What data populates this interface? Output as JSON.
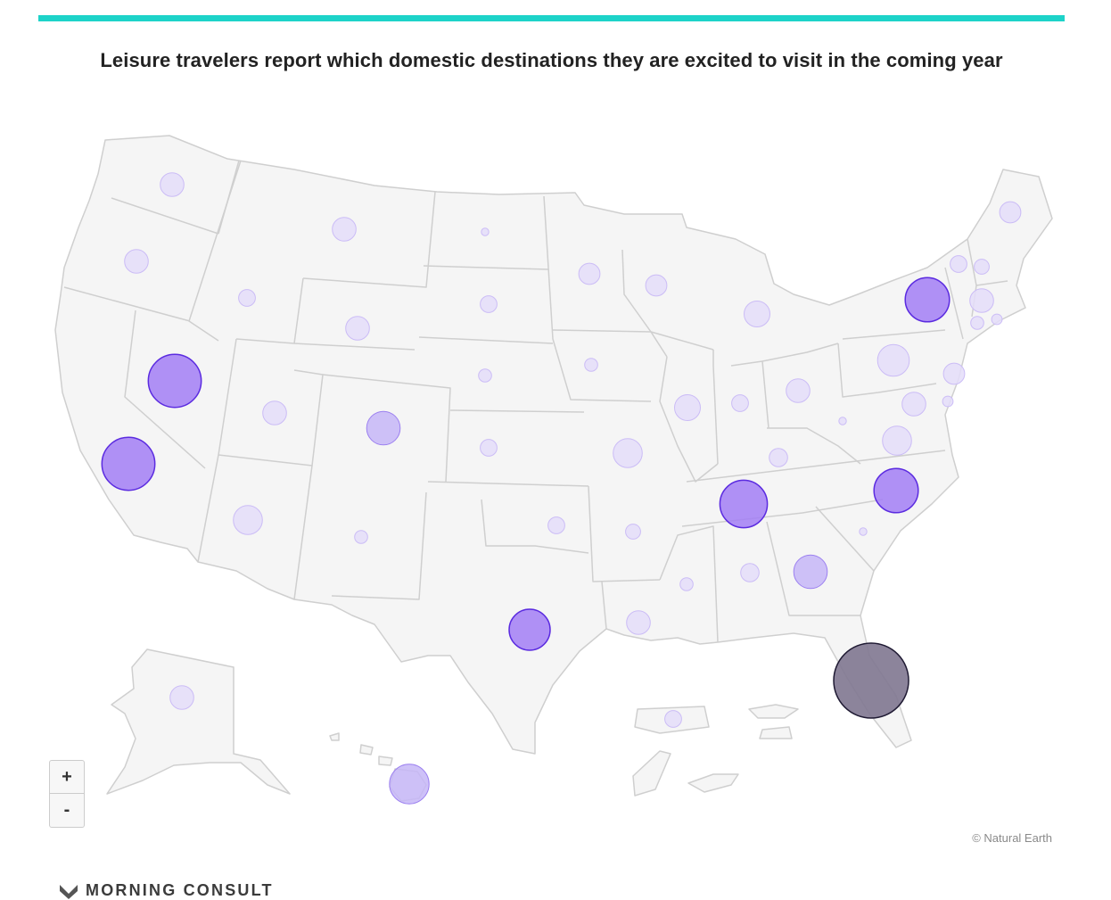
{
  "header": {
    "title": "Leisure travelers report which domestic destinations they are excited to visit in the coming year"
  },
  "map": {
    "region": "United States",
    "style": {
      "land": "#f5f5f5",
      "border": "#cfcfcf",
      "bubble_low": "#e4ddf9",
      "bubble_high": "#a27ef5",
      "bubble_max": "#7f7790"
    },
    "states": [
      {
        "name": "Washington",
        "value": 1
      },
      {
        "name": "Oregon",
        "value": 1
      },
      {
        "name": "California",
        "value": 5
      },
      {
        "name": "Nevada",
        "value": 5
      },
      {
        "name": "Idaho",
        "value": 0.5
      },
      {
        "name": "Montana",
        "value": 1
      },
      {
        "name": "Wyoming",
        "value": 1
      },
      {
        "name": "Utah",
        "value": 1
      },
      {
        "name": "Colorado",
        "value": 2
      },
      {
        "name": "Arizona",
        "value": 1.5
      },
      {
        "name": "New Mexico",
        "value": 0.3
      },
      {
        "name": "North Dakota",
        "value": 0.1
      },
      {
        "name": "South Dakota",
        "value": 0.5
      },
      {
        "name": "Nebraska",
        "value": 0.3
      },
      {
        "name": "Kansas",
        "value": 0.5
      },
      {
        "name": "Oklahoma",
        "value": 0.5
      },
      {
        "name": "Texas",
        "value": 3
      },
      {
        "name": "Minnesota",
        "value": 0.8
      },
      {
        "name": "Iowa",
        "value": 0.3
      },
      {
        "name": "Missouri",
        "value": 1.5
      },
      {
        "name": "Arkansas",
        "value": 0.4
      },
      {
        "name": "Louisiana",
        "value": 1
      },
      {
        "name": "Wisconsin",
        "value": 0.8
      },
      {
        "name": "Illinois",
        "value": 1.2
      },
      {
        "name": "Michigan",
        "value": 1.2
      },
      {
        "name": "Indiana",
        "value": 0.5
      },
      {
        "name": "Ohio",
        "value": 1
      },
      {
        "name": "Kentucky",
        "value": 0.6
      },
      {
        "name": "Tennessee",
        "value": 4
      },
      {
        "name": "Mississippi",
        "value": 0.3
      },
      {
        "name": "Alabama",
        "value": 0.6
      },
      {
        "name": "Georgia",
        "value": 2
      },
      {
        "name": "Florida",
        "value": 10
      },
      {
        "name": "South Carolina",
        "value": 0.1
      },
      {
        "name": "North Carolina",
        "value": 3.5
      },
      {
        "name": "Virginia",
        "value": 1.5
      },
      {
        "name": "West Virginia",
        "value": 0.1
      },
      {
        "name": "Maryland",
        "value": 1
      },
      {
        "name": "Delaware",
        "value": 0.2
      },
      {
        "name": "Pennsylvania",
        "value": 1.8
      },
      {
        "name": "New Jersey",
        "value": 0.8
      },
      {
        "name": "New York",
        "value": 3.5
      },
      {
        "name": "Connecticut",
        "value": 0.3
      },
      {
        "name": "Rhode Island",
        "value": 0.2
      },
      {
        "name": "Massachusetts",
        "value": 1
      },
      {
        "name": "Vermont",
        "value": 0.5
      },
      {
        "name": "New Hampshire",
        "value": 0.4
      },
      {
        "name": "Maine",
        "value": 0.8
      },
      {
        "name": "Alaska",
        "value": 1
      },
      {
        "name": "Hawaii",
        "value": 2.8
      },
      {
        "name": "Puerto Rico",
        "value": 0.5
      }
    ]
  },
  "controls": {
    "zoom_in": "+",
    "zoom_out": "-"
  },
  "credit": "© Natural Earth",
  "brand": {
    "name": "MORNING CONSULT",
    "mark": "°"
  }
}
